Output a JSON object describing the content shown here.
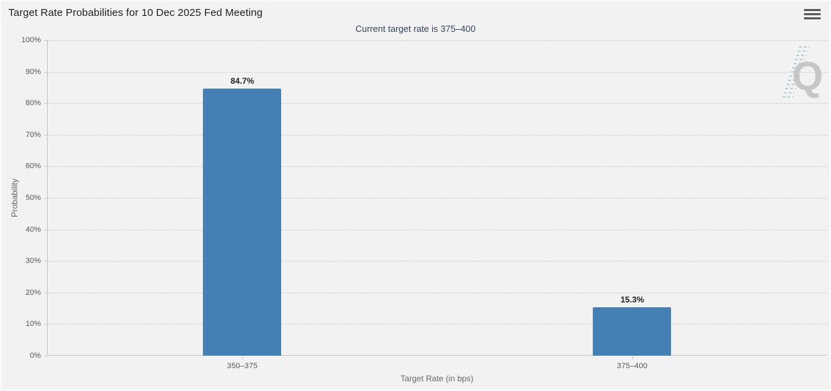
{
  "header": {
    "menu_icon": "hamburger-icon",
    "menu_tooltip": "Chart context menu"
  },
  "watermark": {
    "letter": "Q"
  },
  "chart_data": {
    "type": "bar",
    "title": "Target Rate Probabilities for 10 Dec 2025 Fed Meeting",
    "subtitle": "Current target rate is 375–400",
    "categories": [
      "350–375",
      "375–400"
    ],
    "values": [
      84.7,
      15.3
    ],
    "value_labels": [
      "84.7%",
      "15.3%"
    ],
    "xlabel": "Target Rate (in bps)",
    "ylabel": "Probability",
    "ylim": [
      0,
      100
    ],
    "ytick_step": 10,
    "ytick_labels": [
      "0%",
      "10%",
      "20%",
      "30%",
      "40%",
      "50%",
      "60%",
      "70%",
      "80%",
      "90%",
      "100%"
    ],
    "grid": true,
    "gridline_style": "dotted",
    "legend": "none",
    "bar_color": "#4580b4",
    "background_color": "#f2f2f2",
    "subtitle_color": "#33425e"
  }
}
